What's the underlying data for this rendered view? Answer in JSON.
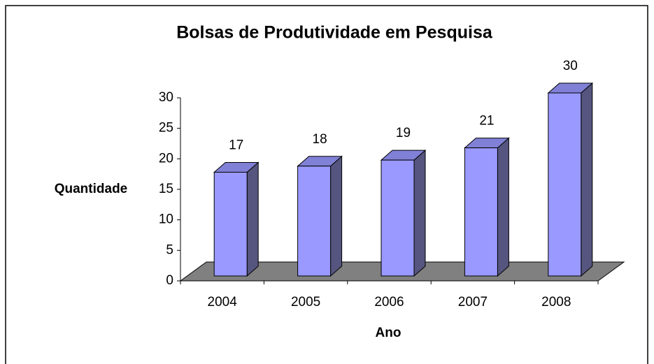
{
  "chart_data": {
    "type": "bar",
    "title": "Bolsas de Produtividade em Pesquisa",
    "x_label": "Ano",
    "y_label": "Quantidade",
    "categories": [
      "2004",
      "2005",
      "2006",
      "2007",
      "2008"
    ],
    "values": [
      17,
      18,
      19,
      21,
      30
    ],
    "color": "#9999ff",
    "ylim": [
      0,
      30
    ],
    "yticks": [
      0,
      5,
      10,
      15,
      20,
      25,
      30
    ],
    "grid": false
  }
}
